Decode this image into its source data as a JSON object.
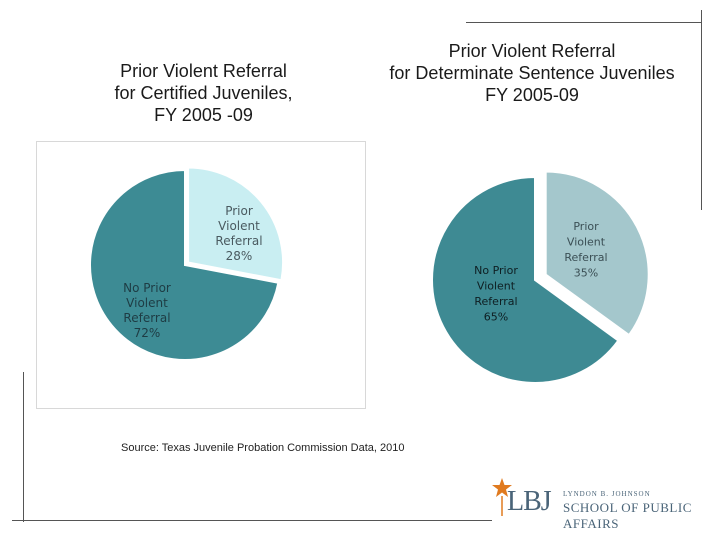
{
  "colors": {
    "left_major": "#3d8b94",
    "left_minor": "#c9eef2",
    "right_major": "#3e8a93",
    "right_minor": "#a4c7cc",
    "slide_line": "#555555",
    "logo_star": "#e07a1f"
  },
  "chart_data": [
    {
      "type": "pie",
      "title": "Prior Violent Referral for Certified Juveniles, FY 2005 -09",
      "title_lines": [
        "Prior Violent Referral",
        "for Certified Juveniles,",
        "FY 2005 -09"
      ],
      "categories": [
        "Prior Violent Referral",
        "No Prior Violent Referral"
      ],
      "values": [
        28,
        72
      ],
      "labels": [
        {
          "lines": [
            "Prior",
            "Violent",
            "Referral",
            "28%"
          ]
        },
        {
          "lines": [
            "No Prior",
            "Violent",
            "Referral",
            "72%"
          ]
        }
      ]
    },
    {
      "type": "pie",
      "title": "Prior Violent Referral for Determinate Sentence Juveniles FY 2005-09",
      "title_lines": [
        "Prior Violent Referral",
        "for Determinate Sentence Juveniles",
        "FY 2005-09"
      ],
      "categories": [
        "Prior Violent Referral",
        "No Prior Violent Referral"
      ],
      "values": [
        35,
        65
      ],
      "labels": [
        {
          "lines": [
            "Prior",
            "Violent",
            "Referral",
            "35%"
          ]
        },
        {
          "lines": [
            "No Prior",
            "Violent",
            "Referral",
            "65%"
          ]
        }
      ]
    }
  ],
  "source": "Source: Texas Juvenile Probation Commission Data, 2010",
  "logo": {
    "mark": "LBJ",
    "top_line": "LYNDON B. JOHNSON",
    "name": "SCHOOL OF PUBLIC AFFAIRS"
  }
}
